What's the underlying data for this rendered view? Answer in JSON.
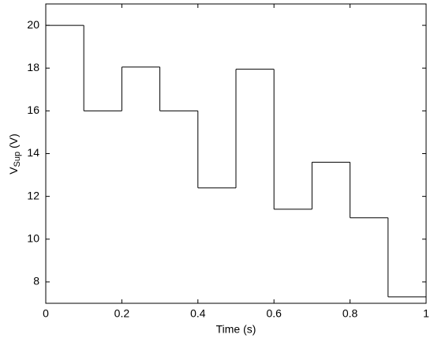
{
  "chart_data": {
    "type": "step",
    "xlabel": "Time (s)",
    "ylabel": "V",
    "ylabel_sub": "Sup",
    "ylabel_unit": "(V)",
    "x": [
      0,
      0.1,
      0.2,
      0.3,
      0.4,
      0.5,
      0.6,
      0.7,
      0.8,
      0.9
    ],
    "values": [
      20,
      16,
      18.05,
      16,
      12.4,
      17.95,
      11.4,
      13.6,
      11,
      7.3
    ],
    "color": "#000000",
    "xlim": [
      0,
      1
    ],
    "xticks": [
      0,
      0.2,
      0.4,
      0.6,
      0.8,
      1
    ],
    "ylim": [
      7,
      21
    ],
    "yticks": [
      8,
      10,
      12,
      14,
      16,
      18,
      20
    ],
    "grid": false
  }
}
